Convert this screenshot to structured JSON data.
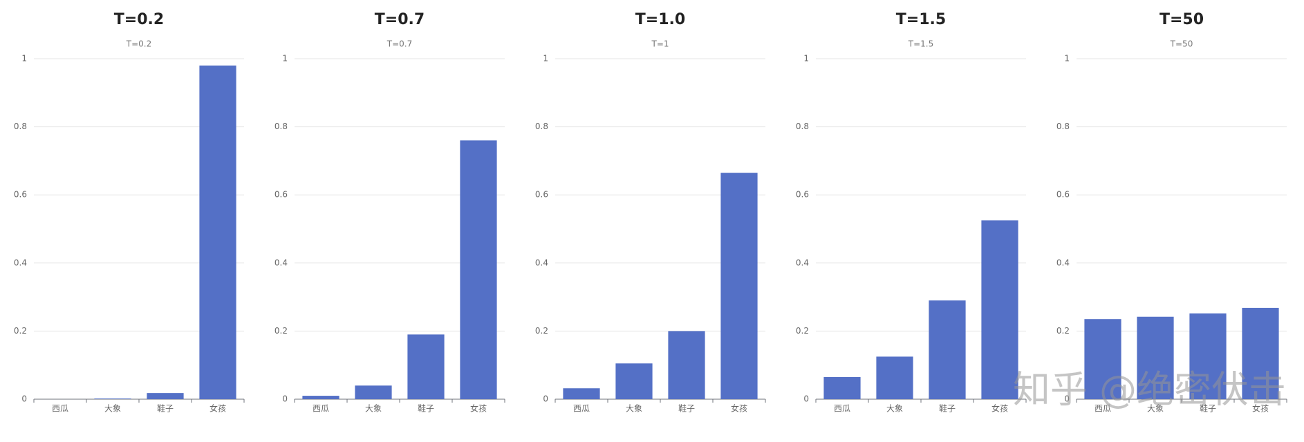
{
  "chart_data": [
    {
      "type": "bar",
      "title": "T=0.2",
      "subtitle": "T=0.2",
      "categories": [
        "西瓜",
        "大象",
        "鞋子",
        "女孩"
      ],
      "values": [
        0,
        0.002,
        0.018,
        0.98
      ],
      "color": "#5470c6",
      "ylim": [
        0,
        1
      ],
      "yticks": [
        0,
        0.2,
        0.4,
        0.6,
        0.8,
        1
      ],
      "grid": true
    },
    {
      "type": "bar",
      "title": "T=0.7",
      "subtitle": "T=0.7",
      "categories": [
        "西瓜",
        "大象",
        "鞋子",
        "女孩"
      ],
      "values": [
        0.01,
        0.04,
        0.19,
        0.76
      ],
      "color": "#5470c6",
      "ylim": [
        0,
        1
      ],
      "yticks": [
        0,
        0.2,
        0.4,
        0.6,
        0.8,
        1
      ],
      "grid": true
    },
    {
      "type": "bar",
      "title": "T=1.0",
      "subtitle": "T=1",
      "categories": [
        "西瓜",
        "大象",
        "鞋子",
        "女孩"
      ],
      "values": [
        0.032,
        0.105,
        0.2,
        0.665
      ],
      "color": "#5470c6",
      "ylim": [
        0,
        1
      ],
      "yticks": [
        0,
        0.2,
        0.4,
        0.6,
        0.8,
        1
      ],
      "grid": true
    },
    {
      "type": "bar",
      "title": "T=1.5",
      "subtitle": "T=1.5",
      "categories": [
        "西瓜",
        "大象",
        "鞋子",
        "女孩"
      ],
      "values": [
        0.065,
        0.125,
        0.29,
        0.525
      ],
      "color": "#5470c6",
      "ylim": [
        0,
        1
      ],
      "yticks": [
        0,
        0.2,
        0.4,
        0.6,
        0.8,
        1
      ],
      "grid": true
    },
    {
      "type": "bar",
      "title": "T=50",
      "subtitle": "T=50",
      "categories": [
        "西瓜",
        "大象",
        "鞋子",
        "女孩"
      ],
      "values": [
        0.235,
        0.242,
        0.252,
        0.268
      ],
      "color": "#5470c6",
      "ylim": [
        0,
        1
      ],
      "yticks": [
        0,
        0.2,
        0.4,
        0.6,
        0.8,
        1
      ],
      "grid": true
    }
  ],
  "watermark": "知乎 @绝密伏击"
}
